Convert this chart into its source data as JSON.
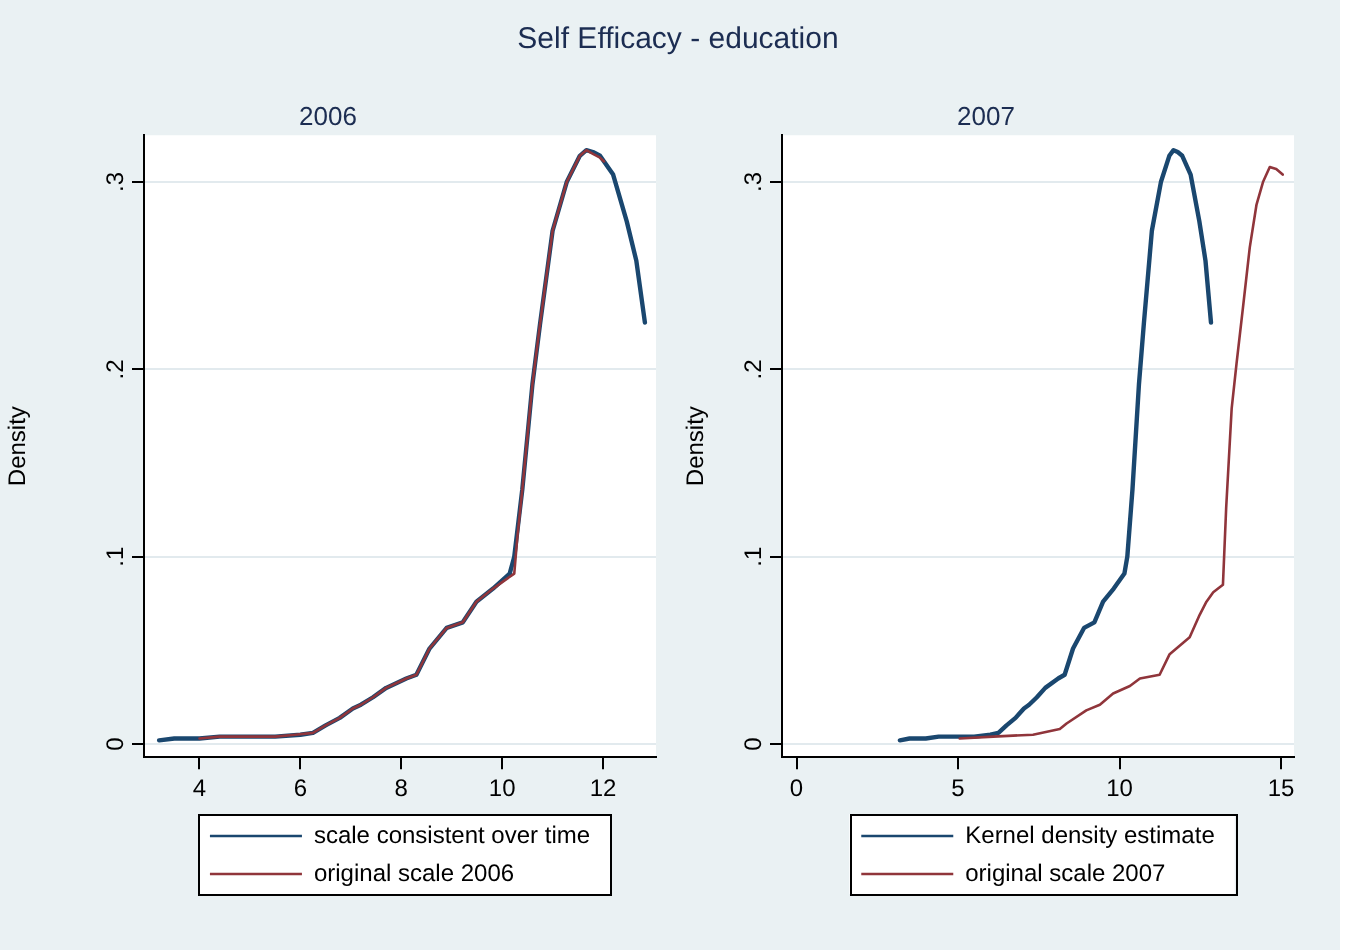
{
  "chart_data": [
    {
      "type": "line",
      "title": "Self Efficacy - education",
      "subtitle": "2006",
      "ylabel": "Density",
      "xlim": [
        2.9,
        13.05
      ],
      "xticks": [
        4,
        6,
        8,
        10,
        12
      ],
      "ylim": [
        -0.007,
        0.325
      ],
      "yticks": [
        0,
        {
          "value": 0.1,
          "label": ".1"
        },
        {
          "value": 0.2,
          "label": ".2"
        },
        {
          "value": 0.3,
          "label": ".3"
        }
      ],
      "grid": "y",
      "legend": "bottom",
      "series": [
        {
          "name": "scale consistent over time",
          "color": "#1a476f",
          "x": [
            3.2,
            3.5,
            4,
            4.4,
            5,
            5.5,
            6,
            6.25,
            6.5,
            6.78,
            7.04,
            7.2,
            7.44,
            7.7,
            8.1,
            8.3,
            8.56,
            8.9,
            9.22,
            9.49,
            9.82,
            10.15,
            10.24,
            10.4,
            10.6,
            10.75,
            11,
            11.28,
            11.54,
            11.67,
            11.8,
            11.94,
            12.2,
            12.47,
            12.66,
            12.83
          ],
          "values": [
            0.002,
            0.003,
            0.003,
            0.004,
            0.004,
            0.004,
            0.005,
            0.006,
            0.01,
            0.014,
            0.019,
            0.021,
            0.025,
            0.03,
            0.035,
            0.037,
            0.051,
            0.062,
            0.065,
            0.076,
            0.083,
            0.091,
            0.1,
            0.136,
            0.192,
            0.224,
            0.274,
            0.3,
            0.314,
            0.317,
            0.316,
            0.314,
            0.304,
            0.279,
            0.258,
            0.225
          ]
        },
        {
          "name": "original scale 2006",
          "color": "#90353b",
          "x": [
            4,
            4.4,
            5,
            5.5,
            5.9,
            6.25,
            6.5,
            6.78,
            7.04,
            7.2,
            7.44,
            7.7,
            8.1,
            8.3,
            8.56,
            8.9,
            9.22,
            9.49,
            9.82,
            10.24,
            10.3,
            10.4,
            10.6,
            10.75,
            11,
            11.28,
            11.54,
            11.67,
            11.8,
            11.94,
            12.02
          ],
          "values": [
            0.003,
            0.004,
            0.004,
            0.004,
            0.005,
            0.006,
            0.01,
            0.014,
            0.019,
            0.021,
            0.025,
            0.03,
            0.035,
            0.037,
            0.051,
            0.062,
            0.065,
            0.076,
            0.083,
            0.091,
            0.11,
            0.136,
            0.192,
            0.224,
            0.274,
            0.3,
            0.314,
            0.317,
            0.315,
            0.313,
            0.311
          ]
        }
      ]
    },
    {
      "type": "line",
      "subtitle": "2007",
      "ylabel": "Density",
      "xlim": [
        -0.45,
        15.4
      ],
      "xticks": [
        0,
        5,
        10,
        15
      ],
      "ylim": [
        -0.007,
        0.325
      ],
      "yticks": [
        0,
        {
          "value": 0.1,
          "label": ".1"
        },
        {
          "value": 0.2,
          "label": ".2"
        },
        {
          "value": 0.3,
          "label": ".3"
        }
      ],
      "grid": "y",
      "legend": "bottom",
      "series": [
        {
          "name": "Kernel density estimate",
          "color": "#1a476f",
          "x": [
            3.2,
            3.5,
            4,
            4.4,
            5,
            5.5,
            6,
            6.25,
            6.5,
            6.78,
            7.04,
            7.2,
            7.44,
            7.7,
            8.1,
            8.3,
            8.56,
            8.9,
            9.22,
            9.49,
            9.82,
            10.15,
            10.24,
            10.4,
            10.6,
            10.75,
            11,
            11.28,
            11.54,
            11.67,
            11.8,
            11.94,
            12.2,
            12.47,
            12.66,
            12.83
          ],
          "values": [
            0.002,
            0.003,
            0.003,
            0.004,
            0.004,
            0.004,
            0.005,
            0.006,
            0.01,
            0.014,
            0.019,
            0.021,
            0.025,
            0.03,
            0.035,
            0.037,
            0.051,
            0.062,
            0.065,
            0.076,
            0.083,
            0.091,
            0.1,
            0.136,
            0.192,
            0.224,
            0.274,
            0.3,
            0.314,
            0.317,
            0.316,
            0.314,
            0.304,
            0.279,
            0.258,
            0.225
          ]
        },
        {
          "name": "original scale 2007",
          "color": "#90353b",
          "x": [
            5.05,
            6.09,
            7.32,
            8.15,
            8.36,
            8.97,
            9.39,
            9.8,
            10.32,
            10.63,
            11.24,
            11.55,
            12.17,
            12.48,
            12.69,
            12.9,
            13.2,
            13.3,
            13.47,
            13.62,
            13.82,
            14.03,
            14.24,
            14.44,
            14.65,
            14.85,
            15.05
          ],
          "values": [
            0.003,
            0.004,
            0.005,
            0.008,
            0.011,
            0.018,
            0.021,
            0.027,
            0.031,
            0.035,
            0.037,
            0.048,
            0.057,
            0.069,
            0.076,
            0.081,
            0.085,
            0.126,
            0.179,
            0.203,
            0.233,
            0.265,
            0.288,
            0.3,
            0.308,
            0.307,
            0.304
          ]
        }
      ]
    }
  ]
}
